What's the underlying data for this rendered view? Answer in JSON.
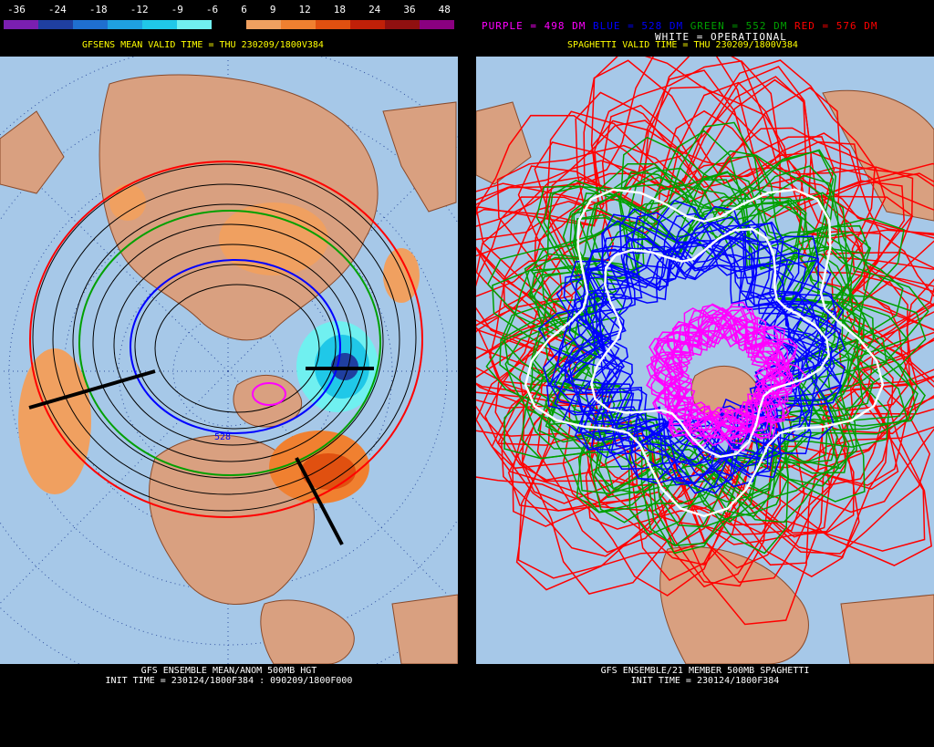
{
  "left": {
    "colorbar": {
      "labels": [
        "-36",
        "-24",
        "-18",
        "-12",
        "-9",
        "-6",
        "6",
        "9",
        "12",
        "18",
        "24",
        "36",
        "48"
      ],
      "colors": [
        "#7a1fb0",
        "#1f3fa0",
        "#1f6fd0",
        "#1fa0e0",
        "#20c8e8",
        "#70f0f0",
        "#000000",
        "#f0a060",
        "#f08030",
        "#e05010",
        "#c02008",
        "#901010",
        "#8a0080"
      ]
    },
    "title": "GFSENS MEAN VALID TIME = THU 230209/1800V384",
    "contour_label": "528",
    "footer_line1": "GFS ENSEMBLE MEAN/ANOM 500MB HGT",
    "footer_line2": "INIT TIME = 230124/1800F384 : 090209/1800F000"
  },
  "right": {
    "legend": {
      "purple": "PURPLE = 498 DM",
      "blue": "BLUE = 528 DM",
      "green": "GREEN = 552 DM",
      "red": "RED = 576 DM",
      "white": "WHITE = OPERATIONAL",
      "colors": {
        "purple": "#ff00ff",
        "blue": "#0000ff",
        "green": "#00a000",
        "red": "#ff0000",
        "white": "#ffffff"
      }
    },
    "title": "SPAGHETTI VALID TIME = THU 230209/1800V384",
    "footer_line1": "GFS ENSEMBLE/21 MEMBER 500MB SPAGHETTI",
    "footer_line2": "INIT TIME = 230124/1800F384"
  }
}
